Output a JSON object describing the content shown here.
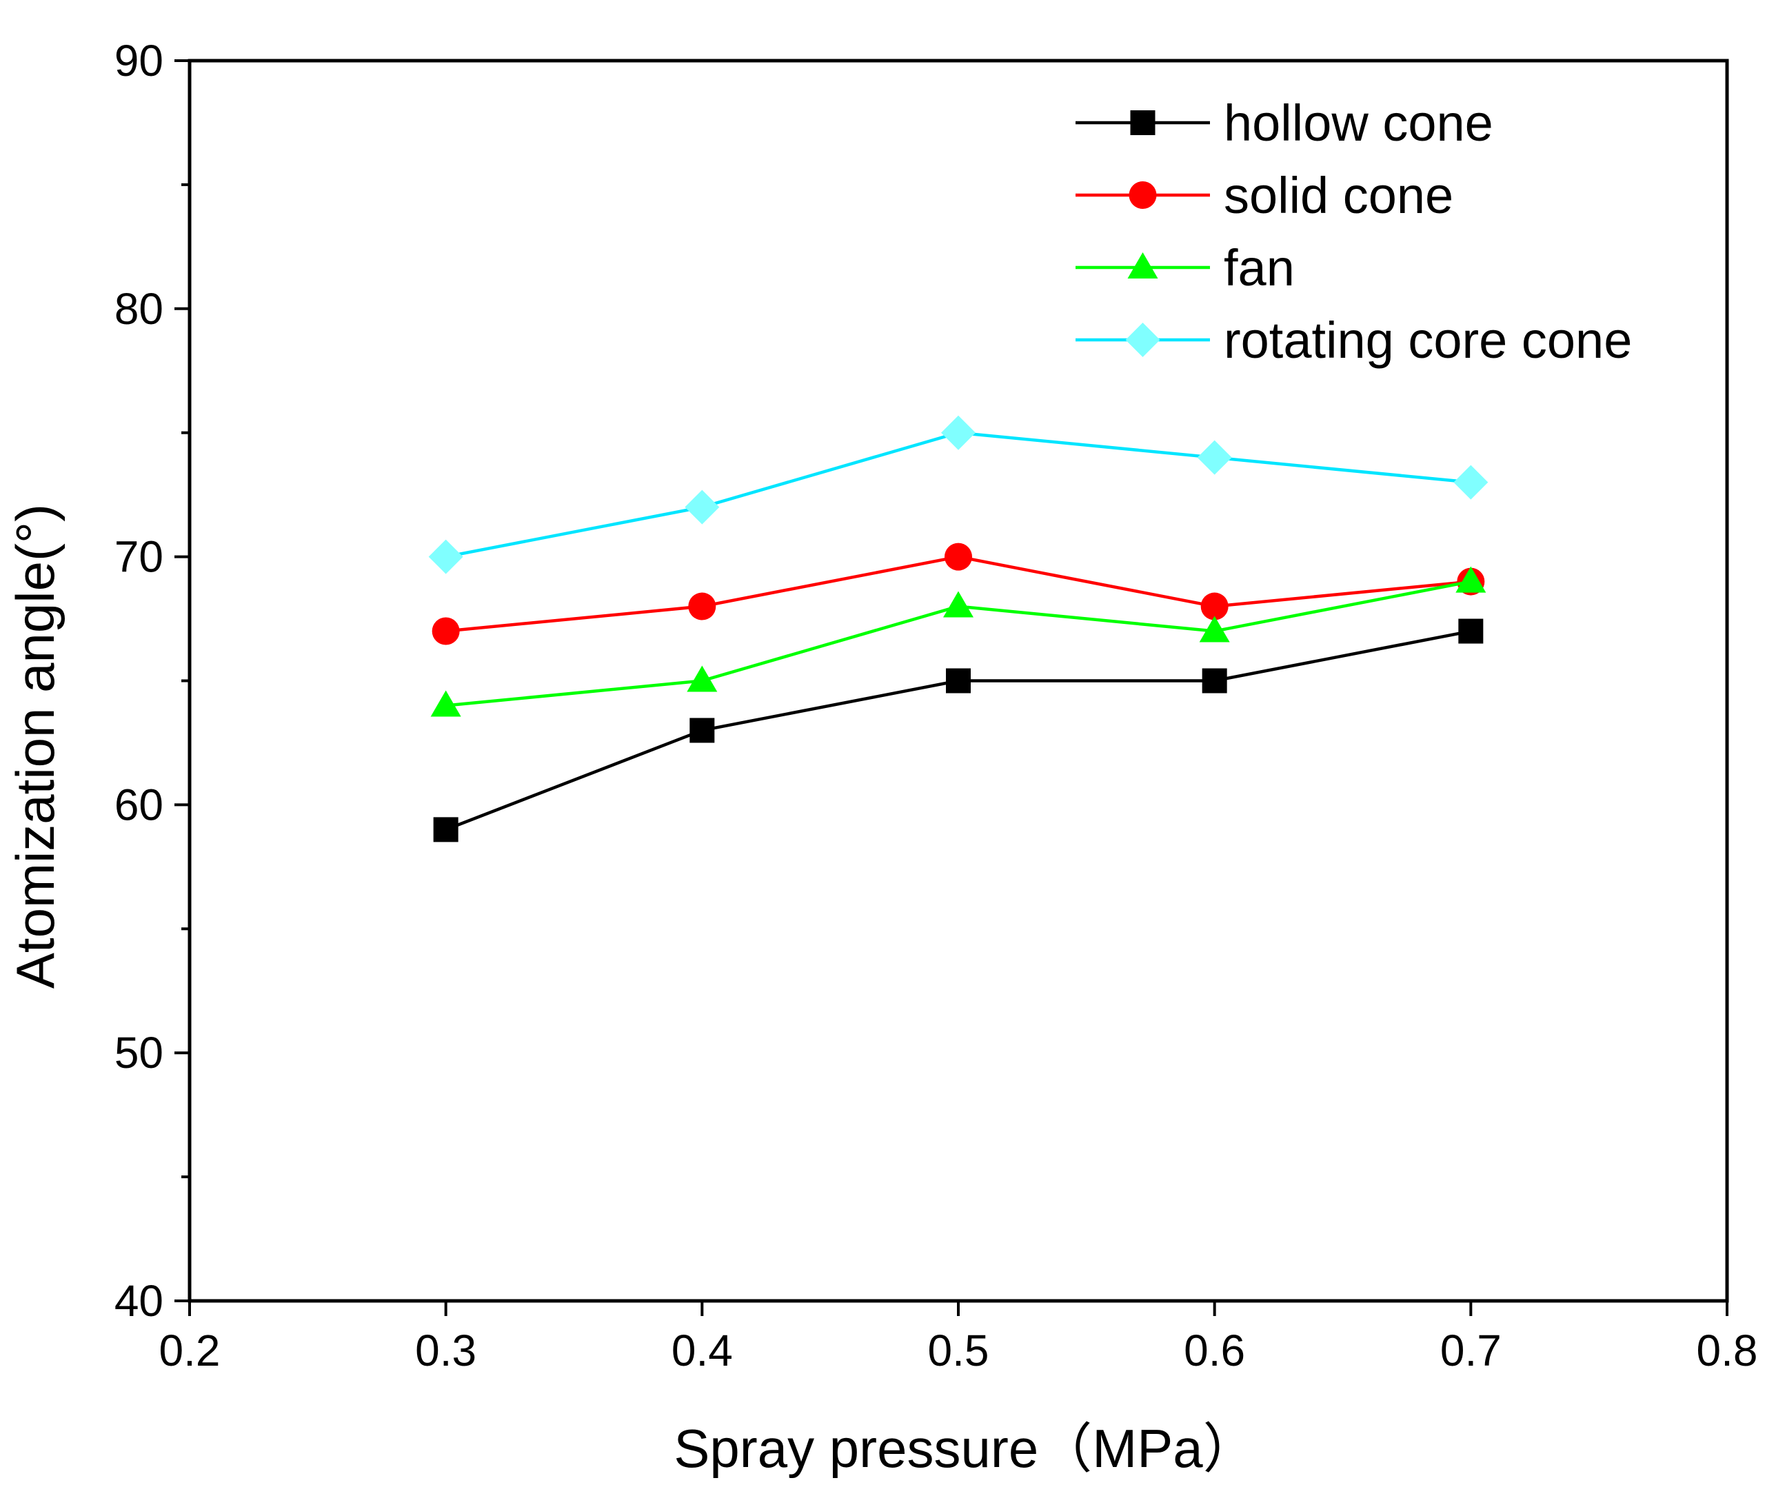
{
  "chart_data": {
    "type": "line",
    "title": "",
    "xlabel": "Spray pressure（MPa）",
    "ylabel": "Atomization angle(°)",
    "xlim": [
      0.2,
      0.8
    ],
    "ylim": [
      40,
      90
    ],
    "x_ticks": [
      0.2,
      0.3,
      0.4,
      0.5,
      0.6,
      0.7,
      0.8
    ],
    "x_tick_labels": [
      "0.2",
      "0.3",
      "0.4",
      "0.5",
      "0.6",
      "0.7",
      "0.8"
    ],
    "y_ticks": [
      40,
      50,
      60,
      70,
      80,
      90
    ],
    "y_tick_labels": [
      "40",
      "50",
      "60",
      "70",
      "80",
      "90"
    ],
    "y_minor_ticks": [
      45,
      55,
      65,
      75,
      85
    ],
    "grid": false,
    "legend_position": "top-right",
    "x": [
      0.3,
      0.4,
      0.5,
      0.6,
      0.7
    ],
    "series": [
      {
        "name": "hollow cone",
        "color": "#000000",
        "marker": "square",
        "values": [
          59,
          63,
          65,
          65,
          67
        ]
      },
      {
        "name": "solid cone",
        "color": "#ff0000",
        "marker": "circle",
        "values": [
          67,
          68,
          70,
          68,
          69
        ]
      },
      {
        "name": "fan",
        "color": "#00ff00",
        "marker": "triangle",
        "values": [
          64,
          65,
          68,
          67,
          69
        ]
      },
      {
        "name": "rotating core cone",
        "color": "#00e5ff",
        "marker": "diamond",
        "marker_color": "#80ffff",
        "values": [
          70,
          72,
          75,
          74,
          73
        ]
      }
    ]
  }
}
